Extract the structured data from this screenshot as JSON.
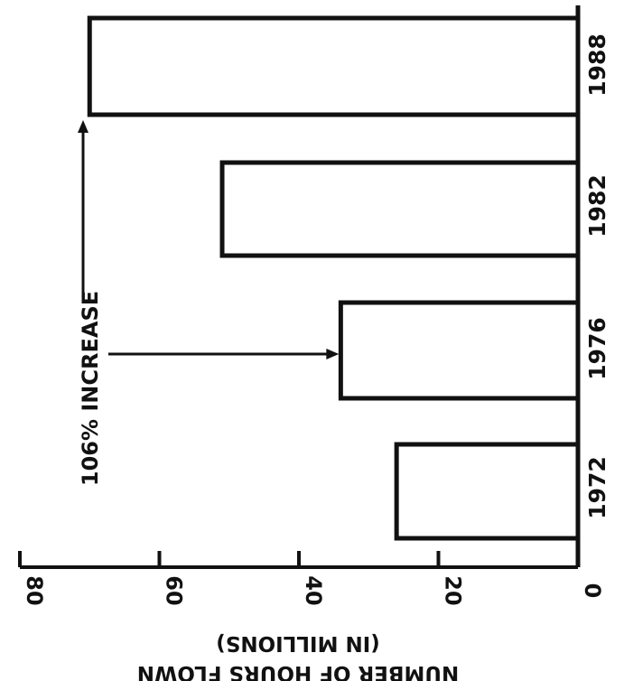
{
  "chart_data": {
    "type": "bar",
    "orientation": "horizontal (figure rotated 90°)",
    "categories": [
      "1972",
      "1976",
      "1982",
      "1988"
    ],
    "values": [
      26,
      34,
      51,
      70
    ],
    "value_axis": {
      "label_line1": "NUMBER OF HOURS FLOWN",
      "label_line2": "(IN MILLIONS)",
      "range": [
        0,
        80
      ],
      "ticks": [
        "0",
        "20",
        "40",
        "60",
        "80"
      ]
    },
    "annotation": {
      "text": "106% INCREASE",
      "from_category": "1976",
      "to_category": "1988"
    },
    "grid": false,
    "legend": "none"
  }
}
